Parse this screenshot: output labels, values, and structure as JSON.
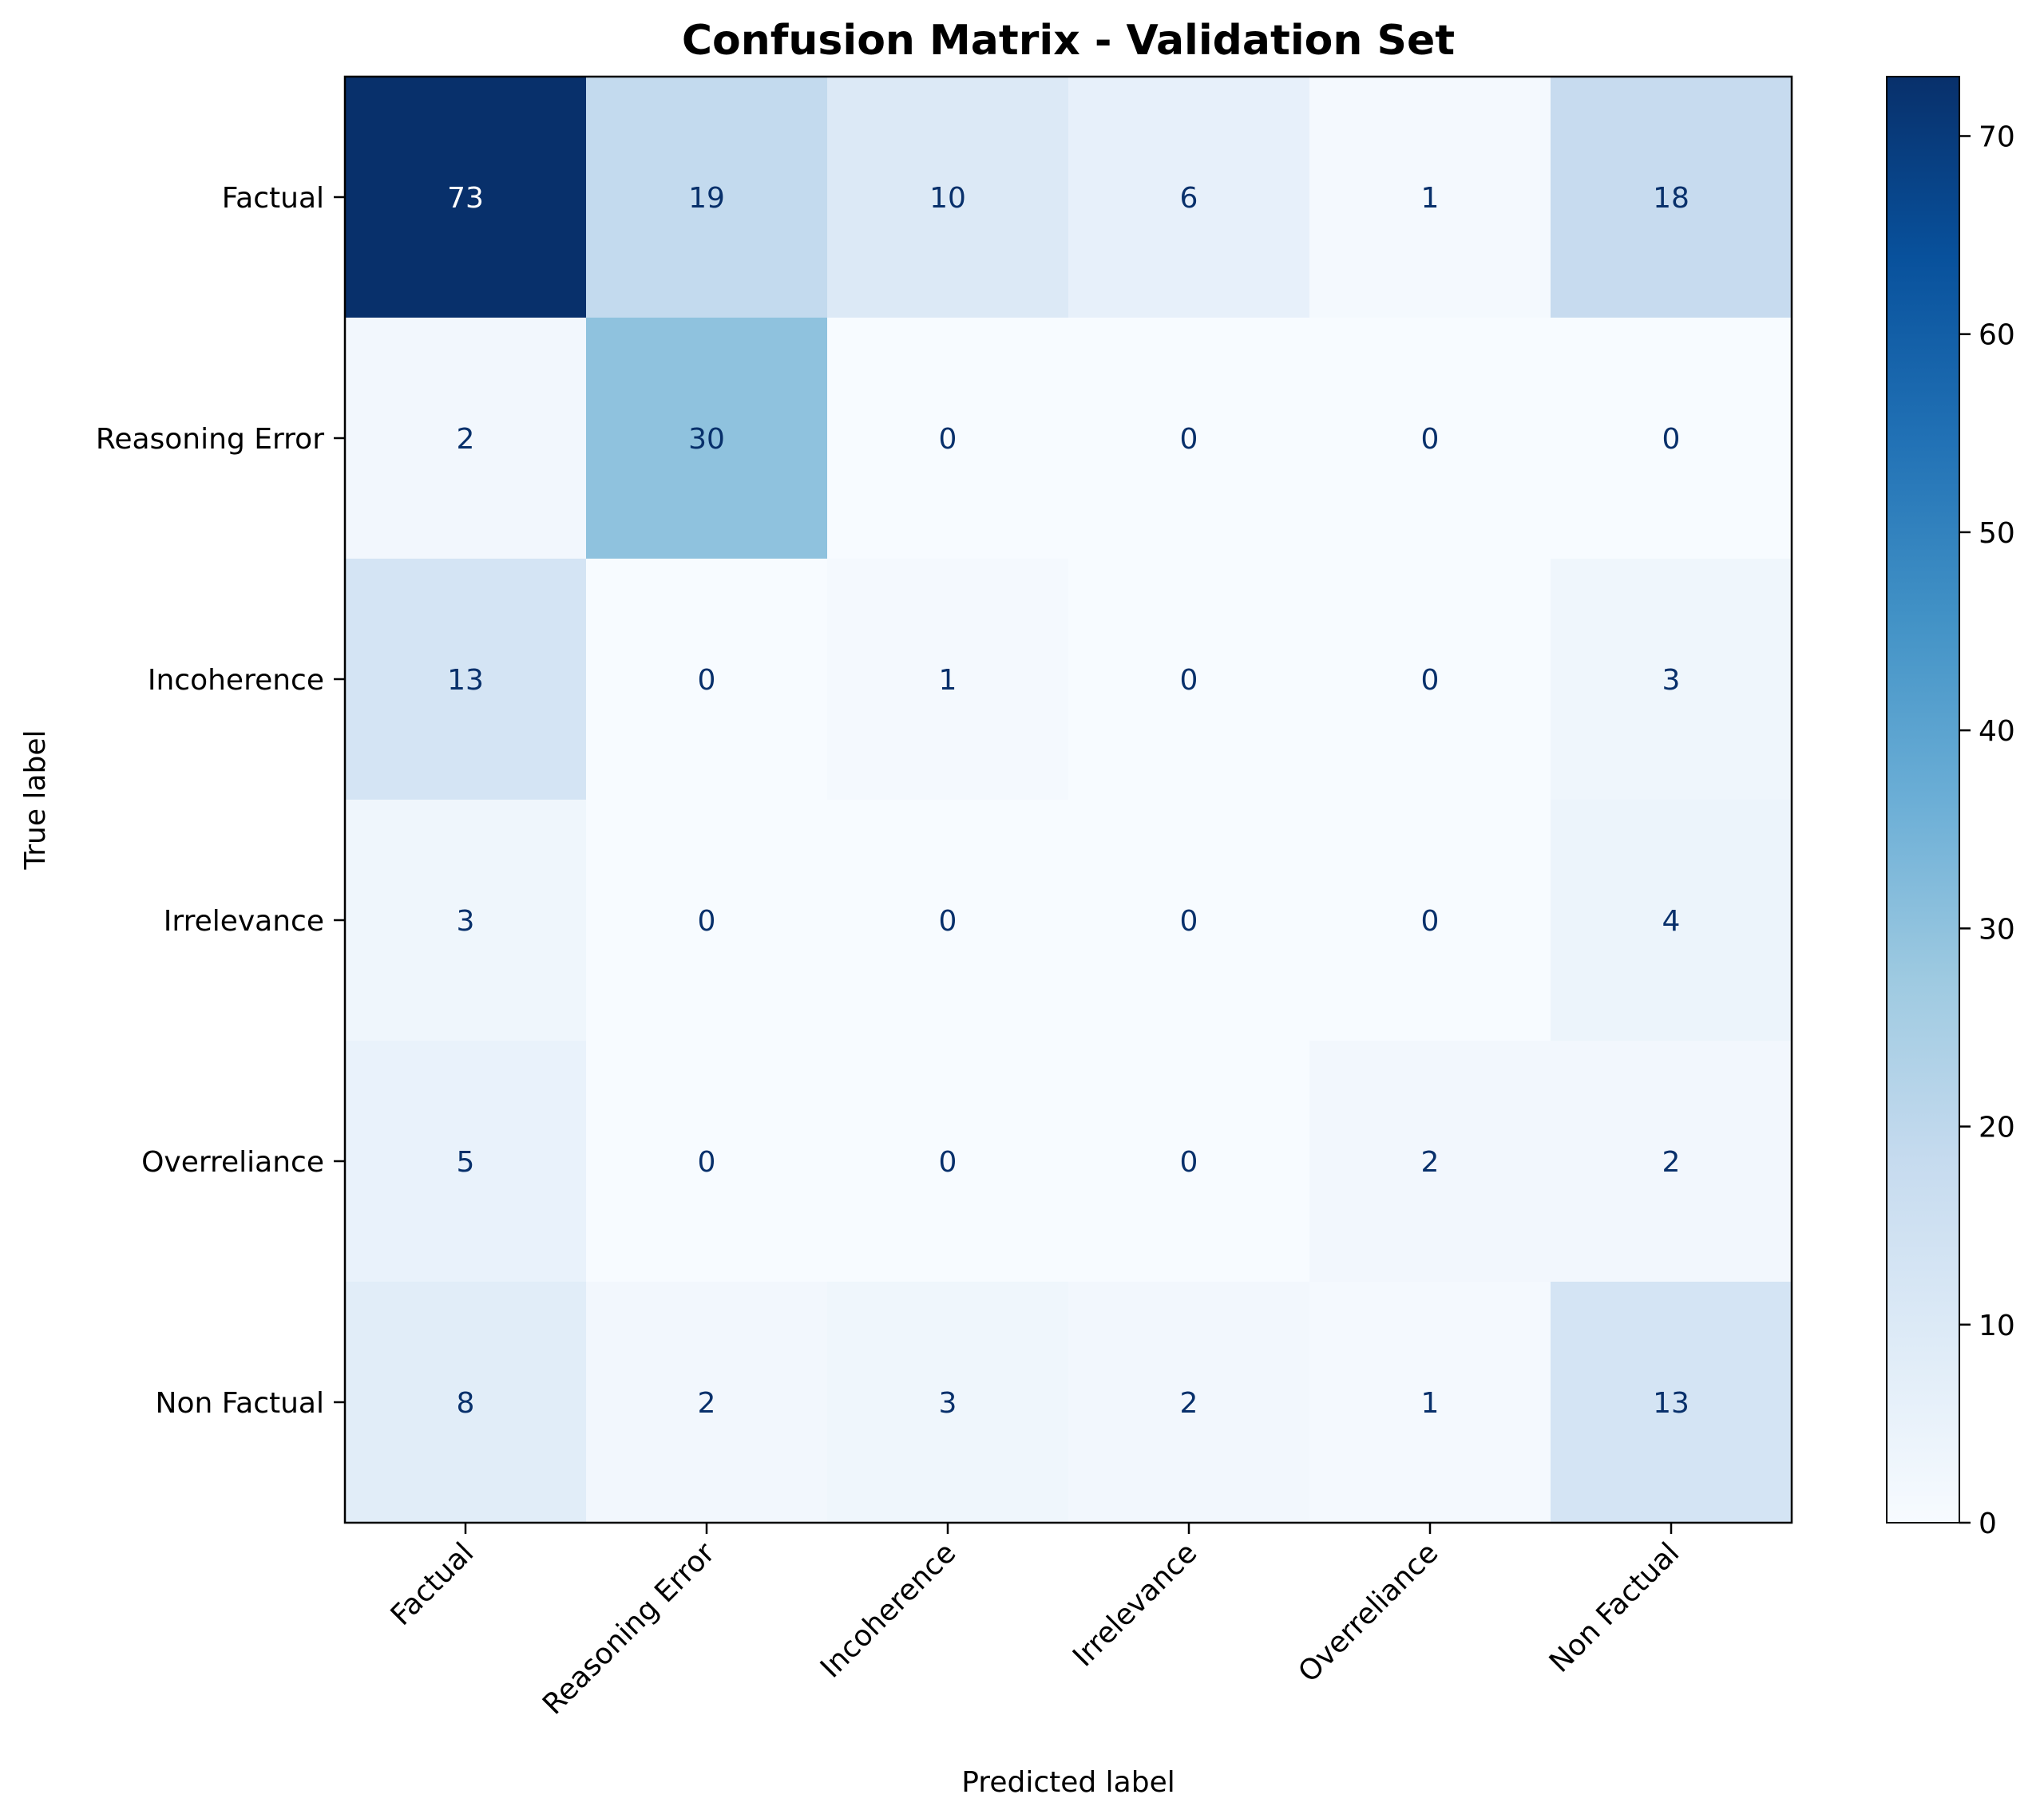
{
  "chart_data": {
    "type": "heatmap",
    "title": "Confusion Matrix - Validation Set",
    "xlabel": "Predicted label",
    "ylabel": "True label",
    "x_categories": [
      "Factual",
      "Reasoning Error",
      "Incoherence",
      "Irrelevance",
      "Overreliance",
      "Non Factual"
    ],
    "y_categories": [
      "Factual",
      "Reasoning Error",
      "Incoherence",
      "Irrelevance",
      "Overreliance",
      "Non Factual"
    ],
    "values": [
      [
        73,
        19,
        10,
        6,
        1,
        18
      ],
      [
        2,
        30,
        0,
        0,
        0,
        0
      ],
      [
        13,
        0,
        1,
        0,
        0,
        3
      ],
      [
        3,
        0,
        0,
        0,
        0,
        4
      ],
      [
        5,
        0,
        0,
        0,
        2,
        2
      ],
      [
        8,
        2,
        3,
        2,
        1,
        13
      ]
    ],
    "colormap": "Blues",
    "vmin": 0,
    "vmax": 73,
    "colorbar_ticks": [
      0,
      10,
      20,
      30,
      40,
      50,
      60,
      70
    ],
    "text_color_dark": "#08306b",
    "text_color_light": "#ffffff"
  }
}
